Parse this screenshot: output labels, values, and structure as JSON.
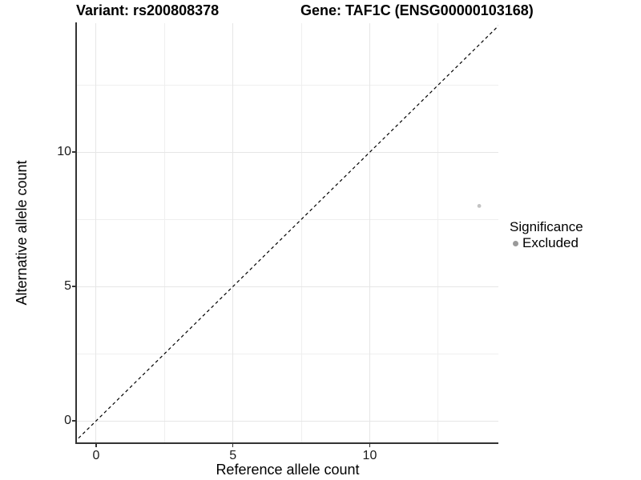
{
  "chart_data": {
    "type": "scatter",
    "titles": {
      "left": "Variant: rs200808378",
      "right": "Gene: TAF1C (ENSG00000103168)"
    },
    "xlabel": "Reference allele count",
    "ylabel": "Alternative allele count",
    "xlim": [
      -0.7,
      14.7
    ],
    "ylim": [
      -0.8,
      14.8
    ],
    "x_ticks": [
      0,
      5,
      10
    ],
    "x_tick_labels": [
      "0",
      "5",
      "10"
    ],
    "y_ticks": [
      0,
      5,
      10
    ],
    "y_tick_labels": [
      "0",
      "5",
      "10"
    ],
    "x_minor_gridlines": [
      2.5,
      7.5,
      12.5
    ],
    "y_minor_gridlines": [
      2.5,
      7.5,
      12.5
    ],
    "grid": true,
    "identity_line": {
      "style": "dashed",
      "equation": "y = x",
      "from": -0.8,
      "to": 14.8,
      "color": "#000000"
    },
    "points": [
      {
        "x": 14,
        "y": 8,
        "significance": "Excluded",
        "color": "#c3c3c3",
        "radius": 2.4
      }
    ],
    "legend": {
      "title": "Significance",
      "position": "right",
      "items": [
        {
          "label": "Excluded",
          "color": "#9a9a9a"
        }
      ]
    },
    "colors": {
      "background": "#ffffff",
      "axis_line": "#333333",
      "major_gridline": "#e6e6e6",
      "minor_gridline": "#efefef",
      "tick_text": "#1a1a1a",
      "title_text": "#000000"
    }
  }
}
